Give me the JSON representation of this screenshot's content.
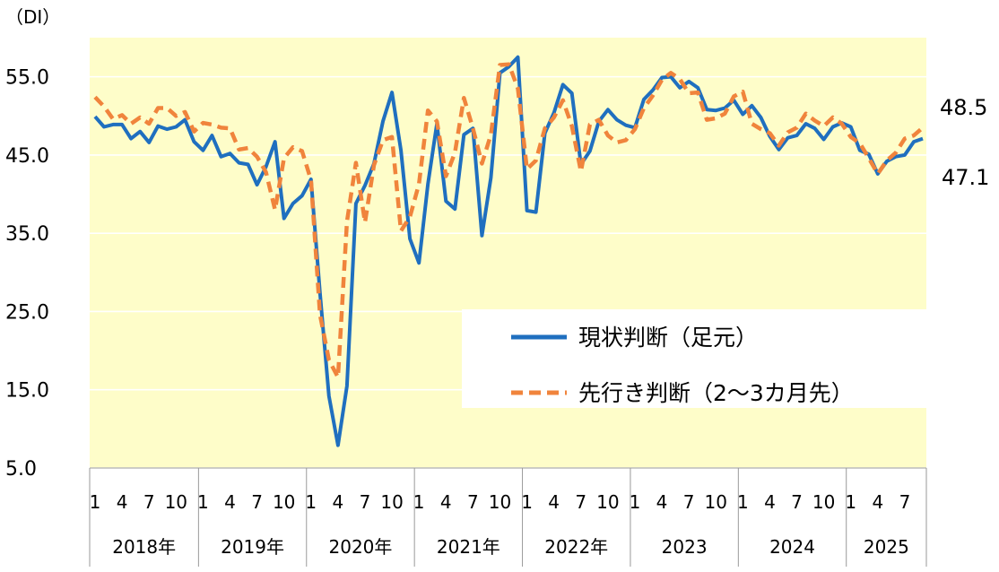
{
  "chart_data": {
    "type": "line",
    "y_unit_label": "（DI）",
    "ylim": [
      5,
      60
    ],
    "y_ticks": [
      "55.0",
      "45.0",
      "35.0",
      "25.0",
      "15.0",
      "5.0"
    ],
    "y_tick_values": [
      55,
      45,
      35,
      25,
      15,
      5
    ],
    "grid": "horizontal",
    "legend_position": "lower-right",
    "month_tick_labels": [
      "1",
      "4",
      "7",
      "10"
    ],
    "year_groups": [
      {
        "label": "2018年",
        "start": 0,
        "months": 12
      },
      {
        "label": "2019年",
        "start": 12,
        "months": 12
      },
      {
        "label": "2020年",
        "start": 24,
        "months": 12
      },
      {
        "label": "2021年",
        "start": 36,
        "months": 12
      },
      {
        "label": "2022年",
        "start": 48,
        "months": 12
      },
      {
        "label": "2023",
        "start": 60,
        "months": 12
      },
      {
        "label": "2024",
        "start": 72,
        "months": 12
      },
      {
        "label": "2025",
        "start": 84,
        "months": 9
      }
    ],
    "series": [
      {
        "name": "現状判断（足元）",
        "color": "#1f6fbf",
        "style": "solid",
        "end_label": "47.1",
        "values": [
          49.9,
          48.6,
          48.9,
          48.9,
          47.1,
          48.0,
          46.6,
          48.7,
          48.3,
          48.6,
          49.5,
          46.7,
          45.6,
          47.5,
          44.8,
          45.2,
          44.0,
          43.8,
          41.2,
          43.5,
          46.7,
          36.9,
          38.8,
          39.8,
          41.9,
          27.4,
          14.2,
          7.9,
          15.5,
          38.8,
          41.1,
          43.9,
          49.3,
          53.0,
          45.6,
          34.3,
          31.2,
          41.3,
          49.0,
          39.1,
          38.1,
          47.6,
          48.4,
          34.7,
          42.1,
          55.5,
          56.3,
          57.5,
          37.9,
          37.7,
          47.8,
          50.4,
          54.0,
          52.9,
          43.8,
          45.5,
          49.3,
          50.8,
          49.5,
          48.8,
          48.5,
          52.1,
          53.3,
          54.9,
          55.0,
          53.6,
          54.4,
          53.6,
          50.8,
          50.7,
          51.0,
          52.0,
          50.2,
          51.3,
          49.8,
          47.4,
          45.7,
          47.2,
          47.5,
          49.0,
          48.4,
          47.0,
          48.6,
          49.1,
          48.6,
          45.6,
          45.1,
          42.6,
          44.2,
          44.8,
          45.0,
          46.7,
          47.1
        ]
      },
      {
        "name": "先行き判断（2〜3カ月先）",
        "color": "#f0843c",
        "style": "dashed",
        "end_label": "48.5",
        "values": [
          52.4,
          51.2,
          49.6,
          50.1,
          49.0,
          49.8,
          49.0,
          51.0,
          51.0,
          50.0,
          50.5,
          48.0,
          49.1,
          48.9,
          48.5,
          48.4,
          45.7,
          45.9,
          44.8,
          42.8,
          38.0,
          44.6,
          46.0,
          45.5,
          41.8,
          24.6,
          18.8,
          16.6,
          36.5,
          44.0,
          36.4,
          43.7,
          46.9,
          47.3,
          35.3,
          37.1,
          41.3,
          50.7,
          49.3,
          42.3,
          45.3,
          52.3,
          48.4,
          43.9,
          47.6,
          56.5,
          56.6,
          53.5,
          43.2,
          44.3,
          48.4,
          49.8,
          52.0,
          48.7,
          42.9,
          48.9,
          49.5,
          47.5,
          46.6,
          46.9,
          48.3,
          51.0,
          52.6,
          54.6,
          55.5,
          54.7,
          52.9,
          53.0,
          49.5,
          49.7,
          50.3,
          52.5,
          53.1,
          49.0,
          48.3,
          47.8,
          46.2,
          47.9,
          48.5,
          50.3,
          49.4,
          48.7,
          49.8,
          49.0,
          47.3,
          46.5,
          44.6,
          42.6,
          44.3,
          45.3,
          47.1,
          47.5,
          48.5
        ]
      }
    ]
  }
}
